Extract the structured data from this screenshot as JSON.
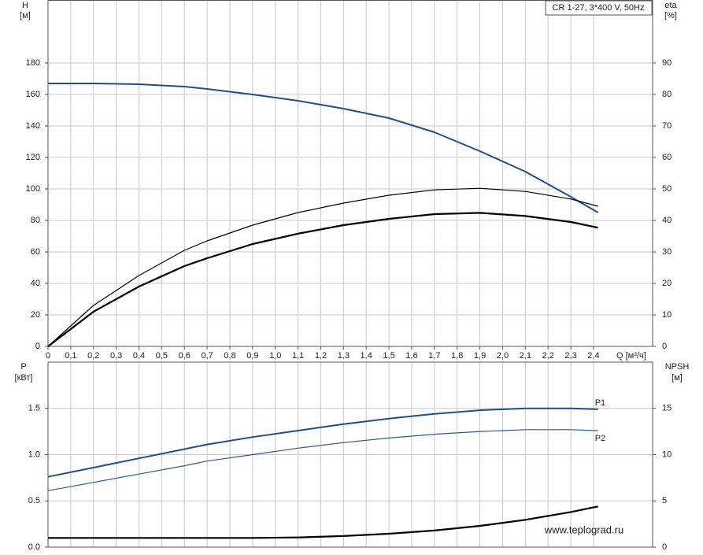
{
  "chart_data": [
    {
      "type": "line",
      "title": "CR 1-27, 3*400 V, 50Hz",
      "ylabel": "H",
      "yunit": "[м]",
      "y2label": "eta",
      "y2unit": "[%]",
      "xlabel": "Q [м³/ч]",
      "x": [
        0,
        0.2,
        0.4,
        0.6,
        0.7,
        0.9,
        1.1,
        1.3,
        1.5,
        1.7,
        1.9,
        2.1,
        2.3,
        2.42
      ],
      "series": [
        {
          "color": "#1f4e8c",
          "width": 2,
          "values": [
            167,
            167,
            166.5,
            165,
            163.5,
            160,
            156,
            151,
            145,
            136,
            124,
            111,
            95,
            85
          ]
        },
        {
          "color": "#000000",
          "width": 1.2,
          "axis": "y2",
          "values": [
            0,
            13,
            22.5,
            30.5,
            33.5,
            38.5,
            42.5,
            45.5,
            48,
            49.7,
            50.2,
            49.2,
            46.8,
            44.5
          ]
        },
        {
          "color": "#000000",
          "width": 2.2,
          "axis": "y2",
          "values": [
            0,
            11,
            19,
            25.5,
            28,
            32.5,
            35.8,
            38.5,
            40.5,
            42,
            42.4,
            41.4,
            39.5,
            37.7
          ]
        }
      ],
      "xlim": [
        0,
        2.66
      ],
      "xticks": [
        0,
        {
          "value": 0.1,
          "label": "0,1"
        },
        {
          "value": 0.2,
          "label": "0,2"
        },
        {
          "value": 0.3,
          "label": "0,3"
        },
        {
          "value": 0.4,
          "label": "0,4"
        },
        {
          "value": 0.5,
          "label": "0,5"
        },
        {
          "value": 0.6,
          "label": "0,6"
        },
        {
          "value": 0.7,
          "label": "0,7"
        },
        {
          "value": 0.8,
          "label": "0,8"
        },
        {
          "value": 0.9,
          "label": "0,9"
        },
        {
          "value": 1.0,
          "label": "1,0"
        },
        {
          "value": 1.1,
          "label": "1,1"
        },
        {
          "value": 1.2,
          "label": "1,2"
        },
        {
          "value": 1.3,
          "label": "1,3"
        },
        {
          "value": 1.4,
          "label": "1,4"
        },
        {
          "value": 1.5,
          "label": "1,5"
        },
        {
          "value": 1.6,
          "label": "1,6"
        },
        {
          "value": 1.7,
          "label": "1,7"
        },
        {
          "value": 1.8,
          "label": "1,8"
        },
        {
          "value": 1.9,
          "label": "1,9"
        },
        {
          "value": 2.0,
          "label": "2,0"
        },
        {
          "value": 2.1,
          "label": "2,1"
        },
        {
          "value": 2.2,
          "label": "2,2"
        },
        {
          "value": 2.3,
          "label": "2,3"
        },
        {
          "value": 2.4,
          "label": "2,4"
        }
      ],
      "ylim": [
        0,
        220
      ],
      "yticks": [
        0,
        20,
        40,
        60,
        80,
        100,
        120,
        140,
        160,
        180
      ],
      "y2lim": [
        0,
        110
      ],
      "y2ticks": [
        0,
        10,
        20,
        30,
        40,
        50,
        60,
        70,
        80,
        90
      ],
      "grid": true
    },
    {
      "type": "line",
      "ylabel": "P",
      "yunit": "[кВт]",
      "y2label": "NPSH",
      "y2unit": "[м]",
      "annotation": "www.teplograd.ru",
      "x": [
        0,
        0.2,
        0.4,
        0.6,
        0.7,
        0.9,
        1.1,
        1.3,
        1.5,
        1.7,
        1.9,
        2.1,
        2.3,
        2.42
      ],
      "series": [
        {
          "name": "P1",
          "color": "#1f4e8c",
          "width": 2,
          "values": [
            0.76,
            0.86,
            0.96,
            1.06,
            1.11,
            1.19,
            1.26,
            1.33,
            1.39,
            1.44,
            1.48,
            1.5,
            1.5,
            1.49
          ]
        },
        {
          "name": "P2",
          "color": "#2a5a9a",
          "width": 1.2,
          "values": [
            0.61,
            0.7,
            0.79,
            0.88,
            0.93,
            1.0,
            1.07,
            1.13,
            1.18,
            1.22,
            1.25,
            1.27,
            1.27,
            1.26
          ]
        },
        {
          "color": "#000000",
          "width": 2.2,
          "axis": "y2",
          "values": [
            1,
            1,
            1,
            1,
            1,
            1,
            1.05,
            1.2,
            1.45,
            1.8,
            2.3,
            2.95,
            3.8,
            4.4
          ]
        }
      ],
      "xlim": [
        0,
        2.66
      ],
      "ylim": [
        0,
        2
      ],
      "yticks": [
        {
          "value": 0,
          "label": "0.0"
        },
        0.5,
        {
          "value": 1,
          "label": "1.0"
        },
        1.5
      ],
      "y2lim": [
        0,
        20
      ],
      "y2ticks": [
        0,
        5,
        10,
        15
      ],
      "grid": true
    }
  ]
}
